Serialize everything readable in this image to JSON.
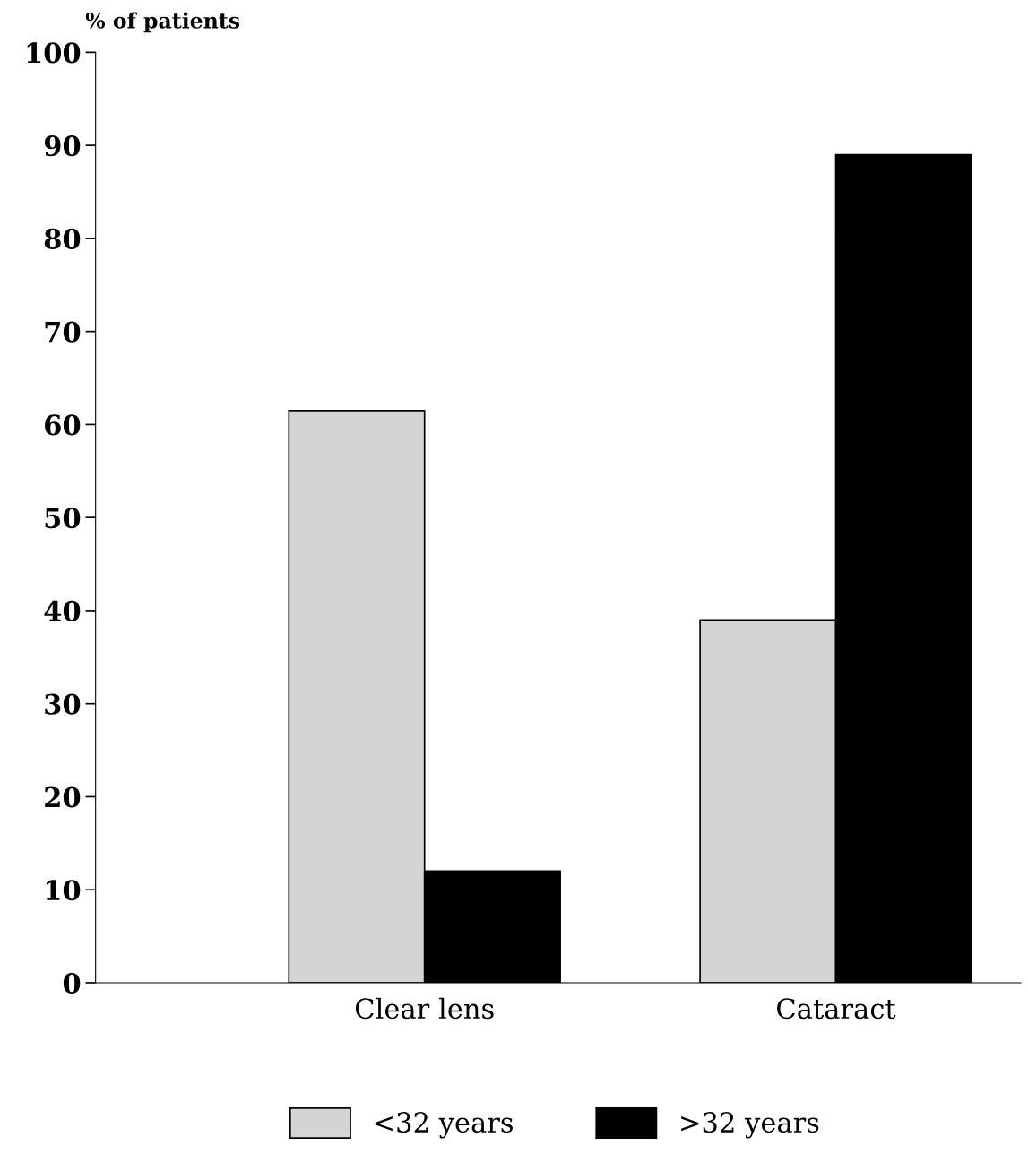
{
  "chart_data": {
    "type": "bar",
    "ylabel": "% of patients",
    "categories": [
      "Clear lens",
      "Cataract"
    ],
    "series": [
      {
        "name": "<32 years",
        "color": "#d4d4d4",
        "values": [
          61.5,
          39
        ]
      },
      {
        "name": ">32 years",
        "color": "#000000",
        "values": [
          12,
          89
        ]
      }
    ],
    "ylim": [
      0,
      100
    ],
    "yticks": [
      0,
      10,
      20,
      30,
      40,
      50,
      60,
      70,
      80,
      90,
      100
    ],
    "grid": false,
    "legend": "bottom"
  }
}
